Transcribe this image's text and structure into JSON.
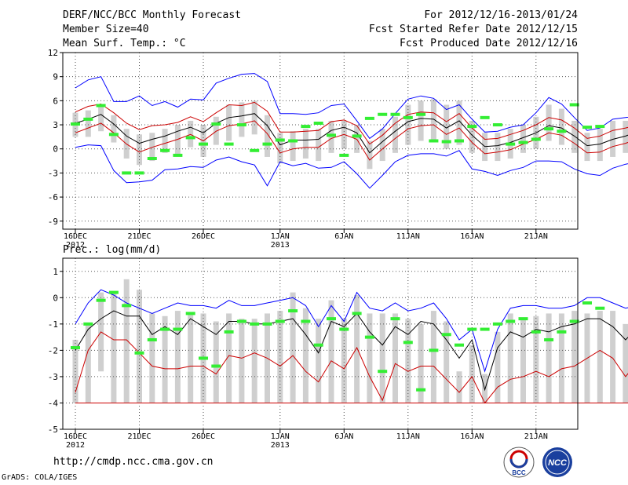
{
  "header": {
    "title": "DERF/NCC/BCC Monthly Forecast",
    "member_size": "Member Size=40",
    "variable": "Mean Surf. Temp.: °C",
    "period": "For 2012/12/16-2013/01/24",
    "started": "Fcst Started Refer Date 2012/12/15",
    "produced": "Fcst Produced Date 2012/12/16"
  },
  "footer": {
    "url": "http://cmdp.ncc.cma.gov.cn",
    "grads": "GrADS: COLA/IGES"
  },
  "logos": {
    "bcc": "BCC",
    "ncc": "NCC"
  },
  "colors": {
    "max": "#0000ff",
    "mean": "#000000",
    "band": "#cc0000",
    "bar": "#cfcfcf",
    "obs": "#33ee33",
    "grid": "#555555"
  },
  "chart_data": [
    {
      "type": "line",
      "title": "Mean Surf. Temp.: °C",
      "ylim": [
        -10,
        12
      ],
      "yticks": [
        "12",
        "9",
        "6",
        "3",
        "0",
        "-3",
        "-6",
        "-9"
      ],
      "ytick_values": [
        12,
        9,
        6,
        3,
        0,
        -3,
        -6,
        -9
      ],
      "xticks": [
        {
          "day": 0,
          "label": "16DEC",
          "sub": "2012"
        },
        {
          "day": 5,
          "label": "21DEC"
        },
        {
          "day": 10,
          "label": "26DEC"
        },
        {
          "day": 16,
          "label": "1JAN",
          "sub": "2013"
        },
        {
          "day": 21,
          "label": "6JAN"
        },
        {
          "day": 26,
          "label": "11JAN"
        },
        {
          "day": 31,
          "label": "16JAN"
        },
        {
          "day": 36,
          "label": "21JAN"
        }
      ],
      "series": [
        {
          "name": "max",
          "color": "#0000ff",
          "values": [
            7.6,
            8.6,
            9.0,
            5.9,
            5.9,
            6.6,
            5.4,
            5.9,
            5.2,
            6.2,
            6.1,
            8.2,
            8.8,
            9.3,
            9.4,
            8.4,
            4.4,
            4.4,
            4.3,
            4.5,
            5.4,
            5.6,
            3.5,
            1.3,
            2.5,
            4.4,
            6.2,
            6.6,
            6.3,
            4.9,
            5.5,
            3.7,
            2.1,
            2.2,
            2.7,
            3.0,
            4.5,
            6.4,
            5.6,
            3.9,
            2.3,
            2.6,
            3.7,
            3.9,
            4.1,
            3.8,
            5.4,
            7.0,
            3.7,
            3.6
          ]
        },
        {
          "name": "upper",
          "color": "#cc0000",
          "values": [
            4.6,
            5.3,
            5.6,
            4.5,
            3.2,
            2.4,
            2.9,
            3.0,
            3.3,
            4.0,
            3.4,
            4.5,
            5.5,
            5.4,
            5.8,
            4.7,
            2.1,
            2.1,
            2.2,
            2.3,
            3.4,
            3.6,
            2.9,
            0.6,
            1.7,
            3.2,
            4.3,
            4.6,
            4.5,
            3.4,
            4.4,
            2.6,
            1.2,
            1.3,
            1.8,
            2.3,
            3.0,
            3.9,
            3.6,
            2.6,
            1.3,
            1.6,
            2.3,
            2.6,
            3.0,
            2.6,
            4.6,
            6.0,
            2.8,
            2.9
          ]
        },
        {
          "name": "mean",
          "color": "#000000",
          "values": [
            3.2,
            3.7,
            4.3,
            3.1,
            1.6,
            0.7,
            1.2,
            1.6,
            2.2,
            2.7,
            2.0,
            3.2,
            3.9,
            4.1,
            4.4,
            2.9,
            0.5,
            1.1,
            1.1,
            1.2,
            2.3,
            2.7,
            2.0,
            -0.5,
            0.9,
            2.2,
            3.4,
            3.8,
            3.7,
            2.6,
            3.5,
            1.7,
            0.3,
            0.4,
            0.8,
            1.4,
            2.0,
            2.9,
            2.6,
            1.6,
            0.4,
            0.6,
            1.2,
            1.6,
            2.2,
            1.5,
            3.6,
            5.0,
            1.7,
            1.4
          ]
        },
        {
          "name": "lower",
          "color": "#cc0000",
          "values": [
            2.0,
            2.6,
            3.2,
            2.0,
            0.6,
            -0.4,
            0.2,
            0.7,
            1.2,
            1.8,
            1.0,
            2.2,
            2.9,
            3.1,
            3.5,
            1.9,
            -0.5,
            0.0,
            0.2,
            0.2,
            1.3,
            1.8,
            1.2,
            -1.4,
            0.0,
            1.3,
            2.5,
            2.9,
            3.0,
            1.8,
            2.6,
            0.8,
            -0.6,
            -0.4,
            -0.1,
            0.6,
            1.2,
            2.0,
            1.7,
            0.7,
            -0.5,
            -0.4,
            0.3,
            0.7,
            1.3,
            0.5,
            2.5,
            4.2,
            0.6,
            0.6
          ]
        },
        {
          "name": "min",
          "color": "#0000ff",
          "values": [
            0.2,
            0.5,
            0.4,
            -2.7,
            -4.2,
            -4.1,
            -3.9,
            -2.6,
            -2.5,
            -2.2,
            -2.3,
            -1.4,
            -1.0,
            -1.6,
            -2.0,
            -4.6,
            -1.6,
            -2.1,
            -1.8,
            -2.4,
            -2.3,
            -1.6,
            -3.1,
            -4.9,
            -3.3,
            -1.6,
            -0.8,
            -0.6,
            -0.6,
            -0.9,
            -0.2,
            -2.5,
            -2.8,
            -3.3,
            -2.7,
            -2.3,
            -1.5,
            -1.5,
            -1.6,
            -2.5,
            -3.1,
            -3.3,
            -2.4,
            -1.9,
            -1.6,
            -1.7,
            -2.6,
            -0.6,
            -1.9,
            -2.0
          ]
        }
      ],
      "bars": {
        "label": "member spread",
        "low": [
          1.5,
          1.5,
          2.2,
          0.8,
          -1.2,
          -2.0,
          -1.5,
          -0.5,
          -0.8,
          0.2,
          -1.0,
          0.5,
          1.0,
          1.5,
          1.8,
          -1.0,
          -1.8,
          -1.5,
          -1.2,
          -1.5,
          -0.5,
          0.0,
          -0.5,
          -2.5,
          -1.5,
          -0.5,
          0.5,
          1.0,
          1.0,
          0.0,
          0.5,
          -0.5,
          -1.5,
          -1.5,
          -1.2,
          -0.5,
          0.0,
          1.0,
          0.5,
          -0.5,
          -1.5,
          -1.5,
          -1.0,
          -0.5,
          0.5,
          -0.5,
          1.0,
          2.0,
          -0.5,
          -0.5
        ],
        "high": [
          4.5,
          4.8,
          5.5,
          4.2,
          2.5,
          1.8,
          2.0,
          2.5,
          3.0,
          3.5,
          3.0,
          4.0,
          5.5,
          5.8,
          6.0,
          4.2,
          2.0,
          2.2,
          2.5,
          2.5,
          3.5,
          3.5,
          3.0,
          1.0,
          2.5,
          4.0,
          5.5,
          6.0,
          6.2,
          5.5,
          6.0,
          3.5,
          2.0,
          2.0,
          2.5,
          3.0,
          4.0,
          5.5,
          5.0,
          3.5,
          2.0,
          2.5,
          3.5,
          3.5,
          4.0,
          3.0,
          6.5,
          7.0,
          3.0,
          3.5
        ]
      },
      "obs": {
        "label": "observed",
        "values": [
          3.1,
          3.7,
          5.4,
          1.8,
          -3.0,
          -3.0,
          -1.2,
          -0.2,
          -0.8,
          1.4,
          0.6,
          3.1,
          0.6,
          3.0,
          -0.2,
          0.6,
          1.1,
          1.0,
          2.8,
          3.2,
          1.7,
          -0.8,
          1.6,
          3.8,
          4.3,
          4.3,
          3.9,
          4.3,
          1.0,
          0.9,
          1.0,
          2.8,
          3.9,
          3.0,
          0.6,
          0.8,
          1.2,
          2.5,
          2.2,
          5.5,
          2.7,
          2.8
        ]
      }
    },
    {
      "type": "line",
      "title": "Prec.: log(mm/d)",
      "ylim": [
        -5,
        1.5
      ],
      "yticks": [
        "1",
        "0",
        "-1",
        "-2",
        "-3",
        "-4",
        "-5"
      ],
      "ytick_values": [
        1,
        0,
        -1,
        -2,
        -3,
        -4,
        -5
      ],
      "xticks": [
        {
          "day": 0,
          "label": "16DEC",
          "sub": "2012"
        },
        {
          "day": 5,
          "label": "21DEC"
        },
        {
          "day": 10,
          "label": "26DEC"
        },
        {
          "day": 16,
          "label": "1JAN",
          "sub": "2013"
        },
        {
          "day": 21,
          "label": "6JAN"
        },
        {
          "day": 26,
          "label": "11JAN"
        },
        {
          "day": 31,
          "label": "16JAN"
        },
        {
          "day": 36,
          "label": "21JAN"
        }
      ],
      "series": [
        {
          "name": "max",
          "color": "#0000ff",
          "values": [
            -1.0,
            -0.2,
            0.3,
            0.1,
            -0.2,
            -0.4,
            -0.6,
            -0.4,
            -0.2,
            -0.3,
            -0.3,
            -0.4,
            -0.1,
            -0.3,
            -0.3,
            -0.2,
            -0.1,
            0.0,
            -0.3,
            -1.1,
            -0.3,
            -0.9,
            0.2,
            -0.4,
            -0.5,
            -0.2,
            -0.5,
            -0.4,
            -0.2,
            -0.8,
            -1.6,
            -1.2,
            -2.8,
            -1.2,
            -0.4,
            -0.3,
            -0.3,
            -0.4,
            -0.4,
            -0.3,
            0.0,
            0.0,
            -0.2,
            -0.4,
            -0.3,
            -0.8,
            -0.4,
            0.0,
            0.3,
            0.3
          ]
        },
        {
          "name": "mean",
          "color": "#000000",
          "values": [
            -2.0,
            -1.2,
            -0.8,
            -0.5,
            -0.7,
            -0.7,
            -1.4,
            -1.1,
            -1.4,
            -0.8,
            -1.1,
            -1.4,
            -0.9,
            -0.9,
            -1.0,
            -1.0,
            -0.9,
            -0.8,
            -1.4,
            -2.1,
            -0.9,
            -1.1,
            -0.6,
            -1.3,
            -1.8,
            -1.1,
            -1.4,
            -0.9,
            -1.0,
            -1.6,
            -2.3,
            -1.6,
            -3.5,
            -1.9,
            -1.3,
            -1.5,
            -1.2,
            -1.3,
            -1.1,
            -1.0,
            -0.8,
            -0.8,
            -1.1,
            -1.6,
            -1.1,
            -1.3,
            -1.2,
            -0.8,
            -0.4,
            -0.5
          ]
        },
        {
          "name": "lower",
          "color": "#cc0000",
          "values": [
            -3.6,
            -2.0,
            -1.3,
            -1.6,
            -1.6,
            -2.1,
            -2.6,
            -2.7,
            -2.7,
            -2.6,
            -2.6,
            -2.9,
            -2.2,
            -2.3,
            -2.1,
            -2.3,
            -2.6,
            -2.2,
            -2.8,
            -3.2,
            -2.4,
            -2.7,
            -1.9,
            -3.0,
            -3.9,
            -2.5,
            -2.8,
            -2.6,
            -2.6,
            -3.1,
            -3.6,
            -3.0,
            -4.0,
            -3.4,
            -3.1,
            -3.0,
            -2.8,
            -3.0,
            -2.7,
            -2.6,
            -2.3,
            -2.0,
            -2.3,
            -3.0,
            -2.4,
            -2.2,
            -1.9,
            -1.7,
            -1.8,
            -1.8
          ]
        }
      ],
      "floor": -4.0,
      "bars": {
        "label": "member spread",
        "low": [
          -4.0,
          -4.0,
          -2.8,
          -4.0,
          -4.0,
          -4.0,
          -4.0,
          -4.0,
          -4.0,
          -4.0,
          -4.0,
          -4.0,
          -4.0,
          -4.0,
          -4.0,
          -4.0,
          -4.0,
          -4.0,
          -4.0,
          -4.0,
          -4.0,
          -4.0,
          -4.0,
          -4.0,
          -4.0,
          -4.0,
          -4.0,
          -4.0,
          -4.0,
          -4.0,
          -4.0,
          -4.0,
          -4.0,
          -4.0,
          -4.0,
          -4.0,
          -4.0,
          -4.0,
          -4.0,
          -4.0,
          -4.0,
          -4.0,
          -4.0,
          -4.0,
          -4.0,
          -4.0,
          -4.0,
          -4.0,
          -4.0,
          -4.0
        ],
        "high": [
          -1.6,
          -1.0,
          0.2,
          0.2,
          0.7,
          0.3,
          -0.6,
          -0.7,
          -0.5,
          -0.6,
          -0.6,
          -0.9,
          -0.6,
          -0.8,
          -0.8,
          -0.6,
          -0.5,
          0.2,
          -0.4,
          -0.8,
          -0.1,
          -0.8,
          0.1,
          -0.6,
          -0.6,
          -0.6,
          -0.8,
          -1.0,
          -0.5,
          -0.9,
          -2.8,
          -1.8,
          -2.9,
          -1.3,
          -0.6,
          -0.8,
          -0.7,
          -0.6,
          -0.6,
          -0.5,
          -0.6,
          -0.5,
          -0.5,
          -1.0,
          -0.5,
          -0.5,
          -0.6,
          0.0,
          0.6,
          0.4
        ]
      },
      "obs": {
        "label": "observed",
        "values": [
          -1.9,
          -1.0,
          -0.1,
          0.2,
          -0.3,
          -2.1,
          -1.6,
          -1.2,
          -1.2,
          -0.6,
          -2.3,
          -2.6,
          -1.3,
          -0.9,
          -1.0,
          -1.0,
          -0.9,
          -0.5,
          -0.9,
          -1.8,
          -0.8,
          -1.2,
          -0.6,
          -1.5,
          -2.8,
          -0.8,
          -1.7,
          -3.5,
          -2.0,
          -1.4,
          -1.8,
          -1.2,
          -1.2,
          -1.0,
          -0.9,
          -0.8,
          -1.3,
          -1.6,
          -1.3,
          -0.9,
          -0.2,
          -0.4
        ]
      }
    }
  ]
}
